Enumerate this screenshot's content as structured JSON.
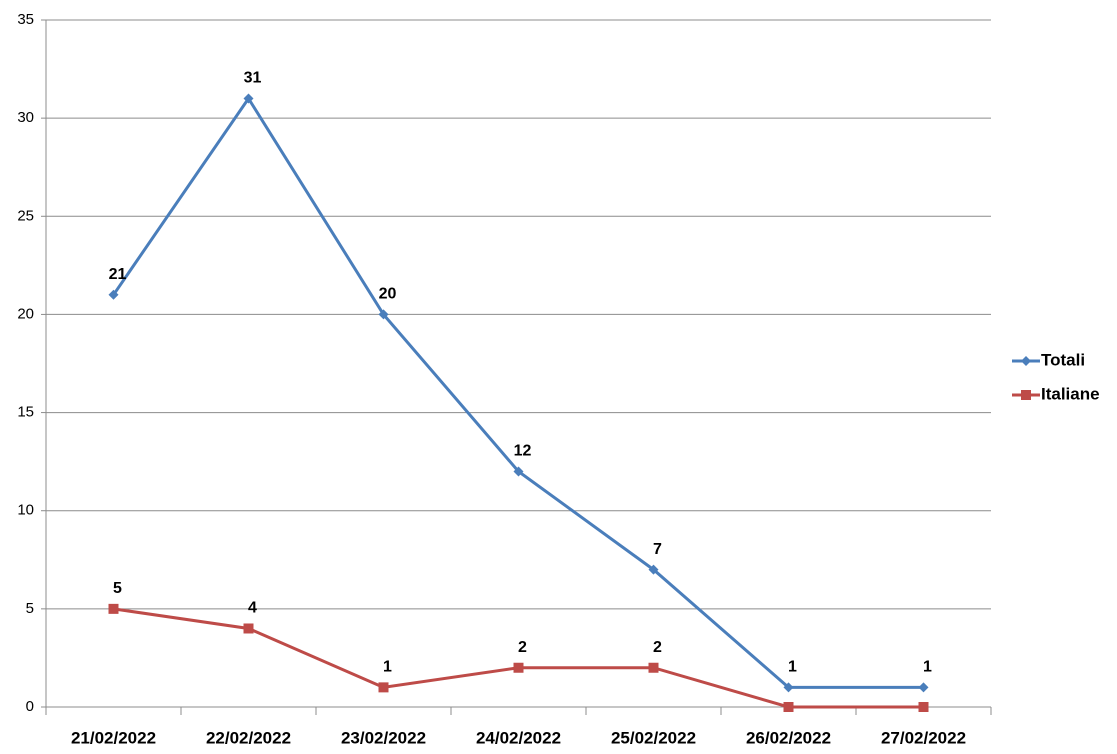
{
  "chart_data": {
    "type": "line",
    "categories": [
      "21/02/2022",
      "22/02/2022",
      "23/02/2022",
      "24/02/2022",
      "25/02/2022",
      "26/02/2022",
      "27/02/2022"
    ],
    "series": [
      {
        "name": "Totali",
        "color": "#4a7ebb",
        "marker": "diamond",
        "values": [
          21,
          31,
          20,
          12,
          7,
          1,
          1
        ]
      },
      {
        "name": "Italiane",
        "color": "#be4b48",
        "marker": "square",
        "values": [
          5,
          4,
          1,
          2,
          2,
          0,
          0
        ]
      }
    ],
    "ylim": [
      0,
      35
    ],
    "yticks": [
      0,
      5,
      10,
      15,
      20,
      25,
      30,
      35
    ],
    "grid": true,
    "legend": "right",
    "data_labels": true
  }
}
